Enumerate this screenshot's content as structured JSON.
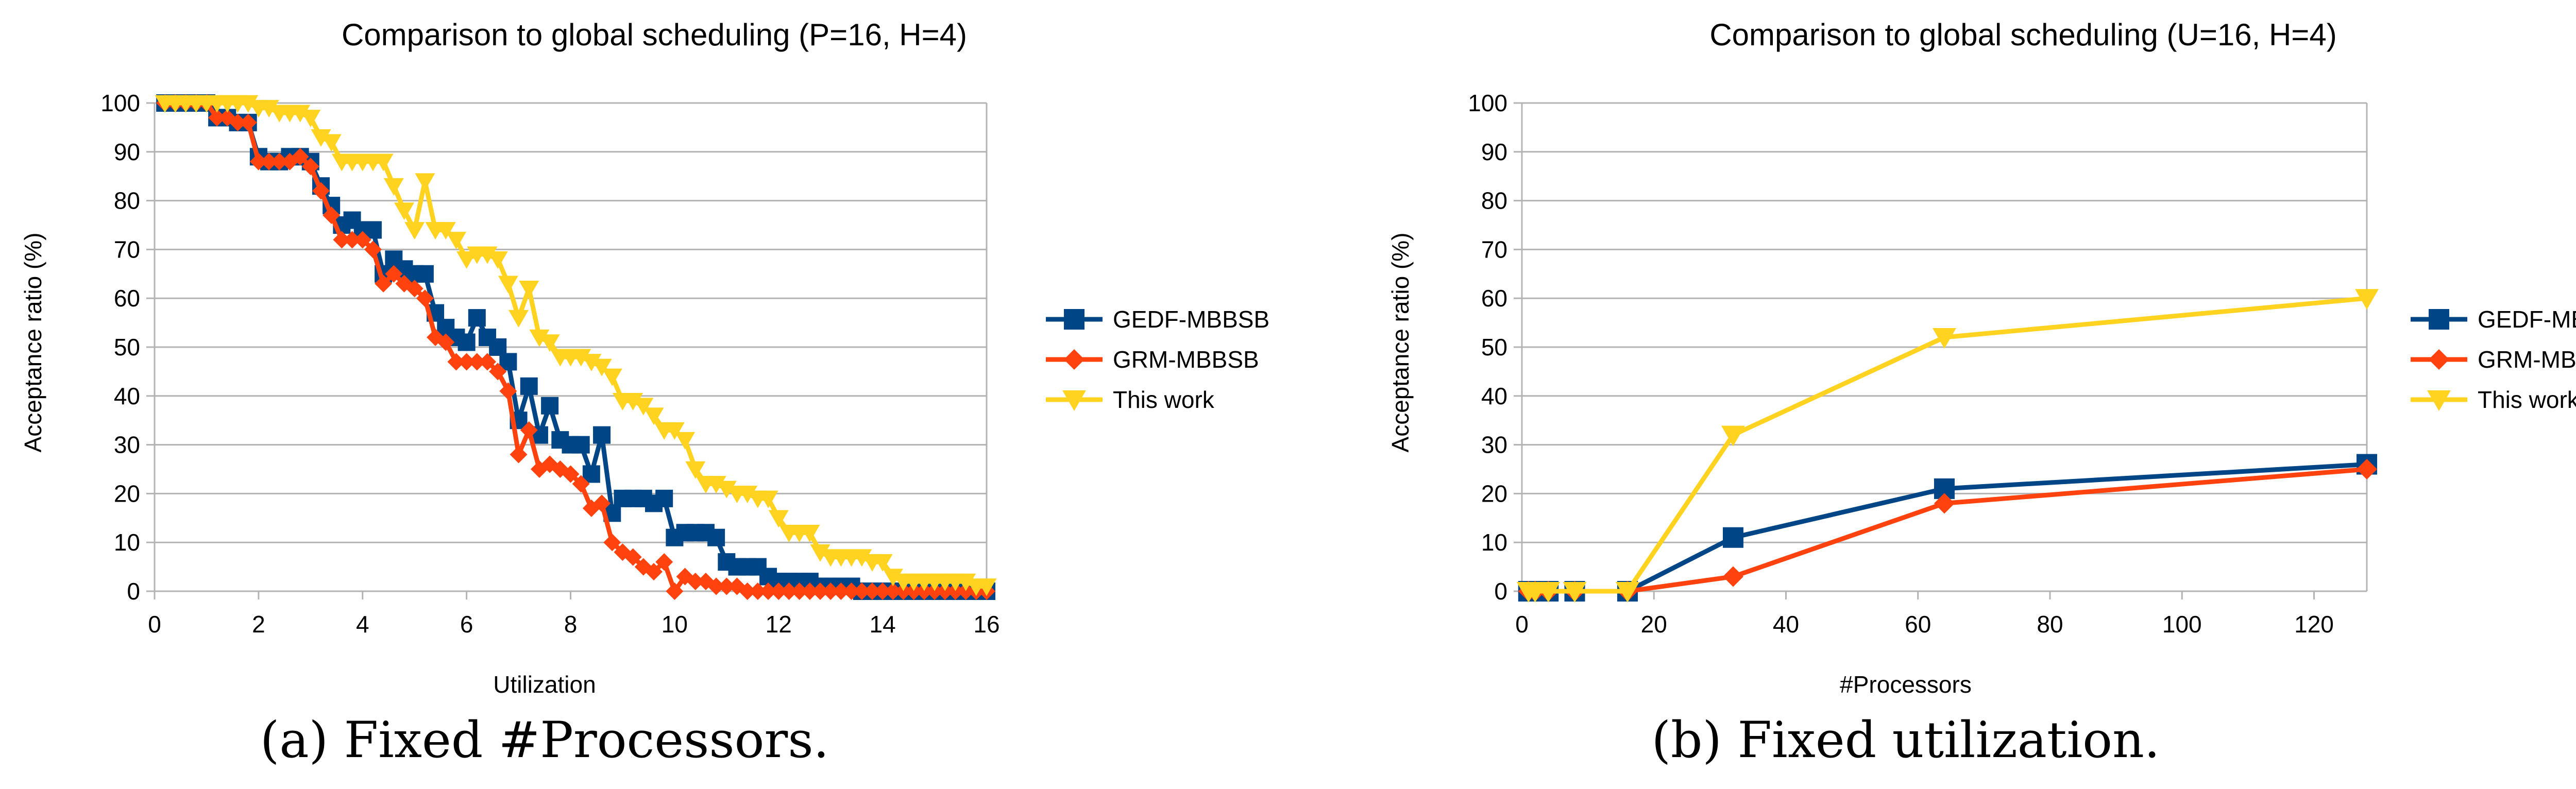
{
  "colors": {
    "gedf": "#004586",
    "grm": "#ff420e",
    "this_work": "#ffd320",
    "grid": "#b3b3b3",
    "text": "#000000"
  },
  "chart_data": [
    {
      "type": "line",
      "title": "Comparison to global scheduling (P=16, H=4)",
      "xlabel": "Utilization",
      "ylabel": "Acceptance ratio (%)",
      "xlim": [
        0,
        16
      ],
      "ylim": [
        0,
        100
      ],
      "xticks": [
        "0",
        "2",
        "4",
        "6",
        "8",
        "10",
        "12",
        "14",
        "16"
      ],
      "yticks": [
        "0",
        "10",
        "20",
        "30",
        "40",
        "50",
        "60",
        "70",
        "80",
        "90",
        "100"
      ],
      "grid": "horizontal",
      "legend": "right",
      "caption": "(a) Fixed #Processors.",
      "series": [
        {
          "name": "GEDF-MBBSB",
          "color": "#004586",
          "marker": "square",
          "points": [
            [
              0.2,
              100
            ],
            [
              0.4,
              100
            ],
            [
              0.6,
              100
            ],
            [
              0.8,
              100
            ],
            [
              1.0,
              100
            ],
            [
              1.2,
              97
            ],
            [
              1.4,
              97
            ],
            [
              1.6,
              96
            ],
            [
              1.8,
              96
            ],
            [
              2.0,
              89
            ],
            [
              2.2,
              88
            ],
            [
              2.4,
              88
            ],
            [
              2.6,
              89
            ],
            [
              2.8,
              89
            ],
            [
              3.0,
              88
            ],
            [
              3.2,
              83
            ],
            [
              3.4,
              79
            ],
            [
              3.6,
              75
            ],
            [
              3.8,
              76
            ],
            [
              4.0,
              74
            ],
            [
              4.2,
              74
            ],
            [
              4.4,
              65
            ],
            [
              4.6,
              68
            ],
            [
              4.8,
              66
            ],
            [
              5.0,
              65
            ],
            [
              5.2,
              65
            ],
            [
              5.4,
              57
            ],
            [
              5.6,
              54
            ],
            [
              5.8,
              52
            ],
            [
              6.0,
              51
            ],
            [
              6.2,
              56
            ],
            [
              6.4,
              52
            ],
            [
              6.6,
              50
            ],
            [
              6.8,
              47
            ],
            [
              7.0,
              35
            ],
            [
              7.2,
              42
            ],
            [
              7.4,
              32
            ],
            [
              7.6,
              38
            ],
            [
              7.8,
              31
            ],
            [
              8.0,
              30
            ],
            [
              8.2,
              30
            ],
            [
              8.4,
              24
            ],
            [
              8.6,
              32
            ],
            [
              8.8,
              16
            ],
            [
              9.0,
              19
            ],
            [
              9.2,
              19
            ],
            [
              9.4,
              19
            ],
            [
              9.6,
              18
            ],
            [
              9.8,
              19
            ],
            [
              10.0,
              11
            ],
            [
              10.2,
              12
            ],
            [
              10.4,
              12
            ],
            [
              10.6,
              12
            ],
            [
              10.8,
              11
            ],
            [
              11.0,
              6
            ],
            [
              11.2,
              5
            ],
            [
              11.4,
              5
            ],
            [
              11.6,
              5
            ],
            [
              11.8,
              3
            ],
            [
              12.0,
              2
            ],
            [
              12.2,
              2
            ],
            [
              12.4,
              2
            ],
            [
              12.6,
              2
            ],
            [
              12.8,
              1
            ],
            [
              13.0,
              1
            ],
            [
              13.2,
              1
            ],
            [
              13.4,
              1
            ],
            [
              13.6,
              0
            ],
            [
              13.8,
              0
            ],
            [
              14.0,
              0
            ],
            [
              14.2,
              0
            ],
            [
              14.4,
              0
            ],
            [
              14.6,
              0
            ],
            [
              14.8,
              0
            ],
            [
              15.0,
              0
            ],
            [
              15.2,
              0
            ],
            [
              15.4,
              0
            ],
            [
              15.6,
              0
            ],
            [
              15.8,
              0
            ],
            [
              16.0,
              0
            ]
          ]
        },
        {
          "name": "GRM-MBBSB",
          "color": "#ff420e",
          "marker": "diamond",
          "points": [
            [
              0.2,
              100
            ],
            [
              0.4,
              100
            ],
            [
              0.6,
              100
            ],
            [
              0.8,
              100
            ],
            [
              1.0,
              100
            ],
            [
              1.2,
              97
            ],
            [
              1.4,
              97
            ],
            [
              1.6,
              96
            ],
            [
              1.8,
              96
            ],
            [
              2.0,
              88
            ],
            [
              2.2,
              88
            ],
            [
              2.4,
              88
            ],
            [
              2.6,
              88
            ],
            [
              2.8,
              89
            ],
            [
              3.0,
              87
            ],
            [
              3.2,
              82
            ],
            [
              3.4,
              77
            ],
            [
              3.6,
              72
            ],
            [
              3.8,
              72
            ],
            [
              4.0,
              72
            ],
            [
              4.2,
              70
            ],
            [
              4.4,
              63
            ],
            [
              4.6,
              65
            ],
            [
              4.8,
              63
            ],
            [
              5.0,
              62
            ],
            [
              5.2,
              60
            ],
            [
              5.4,
              52
            ],
            [
              5.6,
              51
            ],
            [
              5.8,
              47
            ],
            [
              6.0,
              47
            ],
            [
              6.2,
              47
            ],
            [
              6.4,
              47
            ],
            [
              6.6,
              45
            ],
            [
              6.8,
              41
            ],
            [
              7.0,
              28
            ],
            [
              7.2,
              33
            ],
            [
              7.4,
              25
            ],
            [
              7.6,
              26
            ],
            [
              7.8,
              25
            ],
            [
              8.0,
              24
            ],
            [
              8.2,
              22
            ],
            [
              8.4,
              17
            ],
            [
              8.6,
              18
            ],
            [
              8.8,
              10
            ],
            [
              9.0,
              8
            ],
            [
              9.2,
              7
            ],
            [
              9.4,
              5
            ],
            [
              9.6,
              4
            ],
            [
              9.8,
              6
            ],
            [
              10.0,
              0
            ],
            [
              10.2,
              3
            ],
            [
              10.4,
              2
            ],
            [
              10.6,
              2
            ],
            [
              10.8,
              1
            ],
            [
              11.0,
              1
            ],
            [
              11.2,
              1
            ],
            [
              11.4,
              0
            ],
            [
              11.6,
              0
            ],
            [
              11.8,
              0
            ],
            [
              12.0,
              0
            ],
            [
              12.2,
              0
            ],
            [
              12.4,
              0
            ],
            [
              12.6,
              0
            ],
            [
              12.8,
              0
            ],
            [
              13.0,
              0
            ],
            [
              13.2,
              0
            ],
            [
              13.4,
              0
            ],
            [
              13.6,
              0
            ],
            [
              13.8,
              0
            ],
            [
              14.0,
              0
            ],
            [
              14.2,
              0
            ],
            [
              14.4,
              0
            ],
            [
              14.6,
              0
            ],
            [
              14.8,
              0
            ],
            [
              15.0,
              0
            ],
            [
              15.2,
              0
            ],
            [
              15.4,
              0
            ],
            [
              15.6,
              0
            ],
            [
              15.8,
              0
            ],
            [
              16.0,
              0
            ]
          ]
        },
        {
          "name": "This work",
          "color": "#ffd320",
          "marker": "triangle-down",
          "points": [
            [
              0.2,
              100
            ],
            [
              0.4,
              100
            ],
            [
              0.6,
              100
            ],
            [
              0.8,
              100
            ],
            [
              1.0,
              100
            ],
            [
              1.2,
              100
            ],
            [
              1.4,
              100
            ],
            [
              1.6,
              100
            ],
            [
              1.8,
              100
            ],
            [
              2.0,
              99
            ],
            [
              2.2,
              99
            ],
            [
              2.4,
              98
            ],
            [
              2.6,
              98
            ],
            [
              2.8,
              98
            ],
            [
              3.0,
              97
            ],
            [
              3.2,
              93
            ],
            [
              3.4,
              92
            ],
            [
              3.6,
              88
            ],
            [
              3.8,
              88
            ],
            [
              4.0,
              88
            ],
            [
              4.2,
              88
            ],
            [
              4.4,
              88
            ],
            [
              4.6,
              83
            ],
            [
              4.8,
              78
            ],
            [
              5.0,
              74
            ],
            [
              5.2,
              84
            ],
            [
              5.4,
              74
            ],
            [
              5.6,
              74
            ],
            [
              5.8,
              72
            ],
            [
              6.0,
              68
            ],
            [
              6.2,
              69
            ],
            [
              6.4,
              69
            ],
            [
              6.6,
              68
            ],
            [
              6.8,
              63
            ],
            [
              7.0,
              56
            ],
            [
              7.2,
              62
            ],
            [
              7.4,
              52
            ],
            [
              7.6,
              51
            ],
            [
              7.8,
              48
            ],
            [
              8.0,
              48
            ],
            [
              8.2,
              48
            ],
            [
              8.4,
              47
            ],
            [
              8.6,
              46
            ],
            [
              8.8,
              44
            ],
            [
              9.0,
              39
            ],
            [
              9.2,
              39
            ],
            [
              9.4,
              38
            ],
            [
              9.6,
              36
            ],
            [
              9.8,
              33
            ],
            [
              10.0,
              33
            ],
            [
              10.2,
              31
            ],
            [
              10.4,
              25
            ],
            [
              10.6,
              22
            ],
            [
              10.8,
              22
            ],
            [
              11.0,
              21
            ],
            [
              11.2,
              20
            ],
            [
              11.4,
              20
            ],
            [
              11.6,
              19
            ],
            [
              11.8,
              19
            ],
            [
              12.0,
              15
            ],
            [
              12.2,
              12
            ],
            [
              12.4,
              12
            ],
            [
              12.6,
              12
            ],
            [
              12.8,
              8
            ],
            [
              13.0,
              7
            ],
            [
              13.2,
              7
            ],
            [
              13.4,
              7
            ],
            [
              13.6,
              7
            ],
            [
              13.8,
              6
            ],
            [
              14.0,
              6
            ],
            [
              14.2,
              3
            ],
            [
              14.4,
              2
            ],
            [
              14.6,
              2
            ],
            [
              14.8,
              2
            ],
            [
              15.0,
              2
            ],
            [
              15.2,
              2
            ],
            [
              15.4,
              2
            ],
            [
              15.6,
              2
            ],
            [
              15.8,
              1
            ],
            [
              16.0,
              1
            ]
          ]
        }
      ]
    },
    {
      "type": "line",
      "title": "Comparison to global scheduling (U=16, H=4)",
      "xlabel": "#Processors",
      "ylabel": "Acceptance ratio (%)",
      "xlim": [
        0,
        128
      ],
      "ylim": [
        0,
        100
      ],
      "xticks": [
        "0",
        "20",
        "40",
        "60",
        "80",
        "100",
        "120"
      ],
      "yticks": [
        "0",
        "10",
        "20",
        "30",
        "40",
        "50",
        "60",
        "70",
        "80",
        "90",
        "100"
      ],
      "grid": "horizontal",
      "legend": "right",
      "caption": "(b) Fixed utilization.",
      "series": [
        {
          "name": "GEDF-MBBSB",
          "color": "#004586",
          "marker": "square",
          "points": [
            [
              1,
              0
            ],
            [
              2,
              0
            ],
            [
              4,
              0
            ],
            [
              8,
              0
            ],
            [
              16,
              0
            ],
            [
              32,
              11
            ],
            [
              64,
              21
            ],
            [
              128,
              26
            ]
          ]
        },
        {
          "name": "GRM-MBBSB",
          "color": "#ff420e",
          "marker": "diamond",
          "points": [
            [
              1,
              0
            ],
            [
              2,
              0
            ],
            [
              4,
              0
            ],
            [
              8,
              0
            ],
            [
              16,
              0
            ],
            [
              32,
              3
            ],
            [
              64,
              18
            ],
            [
              128,
              25
            ]
          ]
        },
        {
          "name": "This work",
          "color": "#ffd320",
          "marker": "triangle-down",
          "points": [
            [
              1,
              0
            ],
            [
              2,
              0
            ],
            [
              4,
              0
            ],
            [
              8,
              0
            ],
            [
              16,
              0
            ],
            [
              32,
              32
            ],
            [
              64,
              52
            ],
            [
              128,
              60
            ]
          ]
        }
      ]
    }
  ]
}
